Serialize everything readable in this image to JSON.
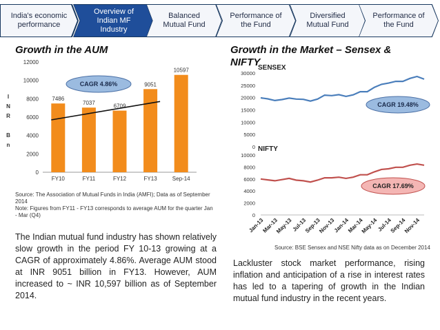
{
  "nav": {
    "items": [
      {
        "label": "India's economic performance",
        "active": false
      },
      {
        "label": "Overview of Indian MF Industry",
        "active": true
      },
      {
        "label": "Balanced Mutual Fund",
        "active": false
      },
      {
        "label": "Performance of the Fund",
        "active": false
      },
      {
        "label": "Diversified Mutual Fund",
        "active": false
      },
      {
        "label": "Performance of the Fund",
        "active": false
      }
    ]
  },
  "left": {
    "title": "Growth in the AUM",
    "source": "Source: The Association of Mutual Funds in India (AMFI); Data as of September 2014",
    "note": "Note: Figures from FY11 - FY13 corresponds to average AUM for the quarter Jan - Mar (Q4)",
    "paragraph": "The Indian mutual fund industry has shown relatively slow growth in the period FY 10-13 growing at a CAGR of approximately 4.86%. Average AUM stood at INR 9051 billion in FY13. However, AUM increased to ~ INR 10,597 billion as of September 2014."
  },
  "right": {
    "title": "Growth in the Market – Sensex & NIFTY",
    "source": "Source: BSE Sensex and NSE Nifty data as on December 2014",
    "paragraph": "Lackluster stock market performance, rising inflation and anticipation of a rise in interest rates has led to a tapering of growth in the Indian mutual fund industry in the recent years."
  },
  "chart_data": [
    {
      "type": "bar",
      "categories": [
        "FY10",
        "FY11",
        "FY12",
        "FY13",
        "Sep-14"
      ],
      "values": [
        7486,
        7037,
        6709,
        9051,
        10597
      ],
      "data_labels": [
        "7486",
        "7037",
        "6709",
        "9051",
        "10597"
      ],
      "ylim": [
        0,
        12000
      ],
      "yticks": [
        0,
        2000,
        4000,
        6000,
        8000,
        10000,
        12000
      ],
      "ylabel_letters": [
        "I",
        "N",
        "R",
        "",
        "B",
        "n"
      ],
      "annotation": "CAGR 4.86%",
      "trendline": true,
      "bar_color": "#f28c1c",
      "grid": false
    },
    {
      "type": "line",
      "name": "SENSEX",
      "x": [
        "Jan-13",
        "Feb-13",
        "Mar-13",
        "Apr-13",
        "May-13",
        "Jun-13",
        "Jul-13",
        "Aug-13",
        "Sep-13",
        "Oct-13",
        "Nov-13",
        "Dec-13",
        "Jan-14",
        "Feb-14",
        "Mar-14",
        "Apr-14",
        "May-14",
        "Jun-14",
        "Jul-14",
        "Aug-14",
        "Sep-14",
        "Oct-14",
        "Nov-14",
        "Dec-14"
      ],
      "values": [
        19900,
        19500,
        18800,
        19200,
        19800,
        19400,
        19300,
        18600,
        19400,
        21000,
        20800,
        21200,
        20500,
        21100,
        22400,
        22400,
        24200,
        25400,
        25900,
        26600,
        26600,
        27800,
        28600,
        27500
      ],
      "ylim": [
        0,
        30000
      ],
      "yticks": [
        0,
        5000,
        10000,
        15000,
        20000,
        25000,
        30000
      ],
      "annotation": "CAGR 19.48%",
      "line_color": "#4a7ebb"
    },
    {
      "type": "line",
      "name": "NIFTY",
      "x": [
        "Jan-13",
        "Feb-13",
        "Mar-13",
        "Apr-13",
        "May-13",
        "Jun-13",
        "Jul-13",
        "Aug-13",
        "Sep-13",
        "Oct-13",
        "Nov-13",
        "Dec-13",
        "Jan-14",
        "Feb-14",
        "Mar-14",
        "Apr-14",
        "May-14",
        "Jun-14",
        "Jul-14",
        "Aug-14",
        "Sep-14",
        "Oct-14",
        "Nov-14",
        "Dec-14"
      ],
      "x_tick_labels": [
        "Jan-13",
        "Mar-13",
        "May-13",
        "Jul-13",
        "Sep-13",
        "Nov-13",
        "Jan-14",
        "Mar-14",
        "May-14",
        "Jul-14",
        "Sep-14",
        "Nov-14"
      ],
      "values": [
        6000,
        5850,
        5700,
        5900,
        6100,
        5800,
        5700,
        5500,
        5800,
        6200,
        6200,
        6300,
        6100,
        6300,
        6700,
        6700,
        7200,
        7600,
        7700,
        7950,
        7950,
        8300,
        8500,
        8300
      ],
      "ylim": [
        0,
        10000
      ],
      "yticks": [
        0,
        2000,
        4000,
        6000,
        8000,
        10000
      ],
      "annotation": "CAGR 17.69%",
      "line_color": "#c0504d"
    }
  ]
}
